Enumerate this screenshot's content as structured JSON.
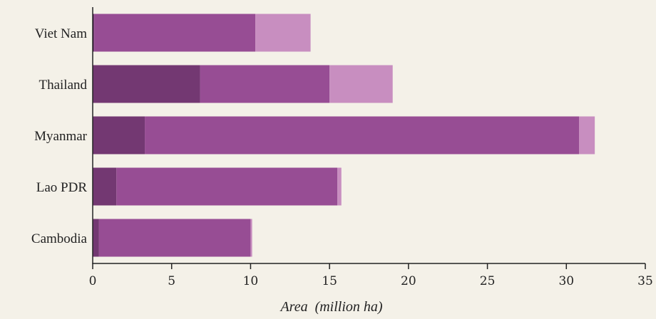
{
  "chart_data": {
    "type": "bar",
    "orientation": "horizontal",
    "stacked": true,
    "categories": [
      "Viet Nam",
      "Thailand",
      "Myanmar",
      "Lao PDR",
      "Cambodia"
    ],
    "series": [
      {
        "values": [
          0.1,
          6.8,
          3.3,
          1.5,
          0.4
        ],
        "color": "#733872"
      },
      {
        "values": [
          10.2,
          8.2,
          27.5,
          14.0,
          9.6
        ],
        "color": "#974d94"
      },
      {
        "values": [
          3.5,
          4.0,
          1.0,
          0.25,
          0.1
        ],
        "color": "#c88ec0"
      }
    ],
    "xlabel": "Area  (million ha)",
    "ylabel": "",
    "xlim": [
      0,
      35
    ],
    "xticks": [
      "0",
      "5",
      "10",
      "15",
      "20",
      "25",
      "30",
      "35"
    ],
    "grid": false,
    "legend": "none"
  }
}
